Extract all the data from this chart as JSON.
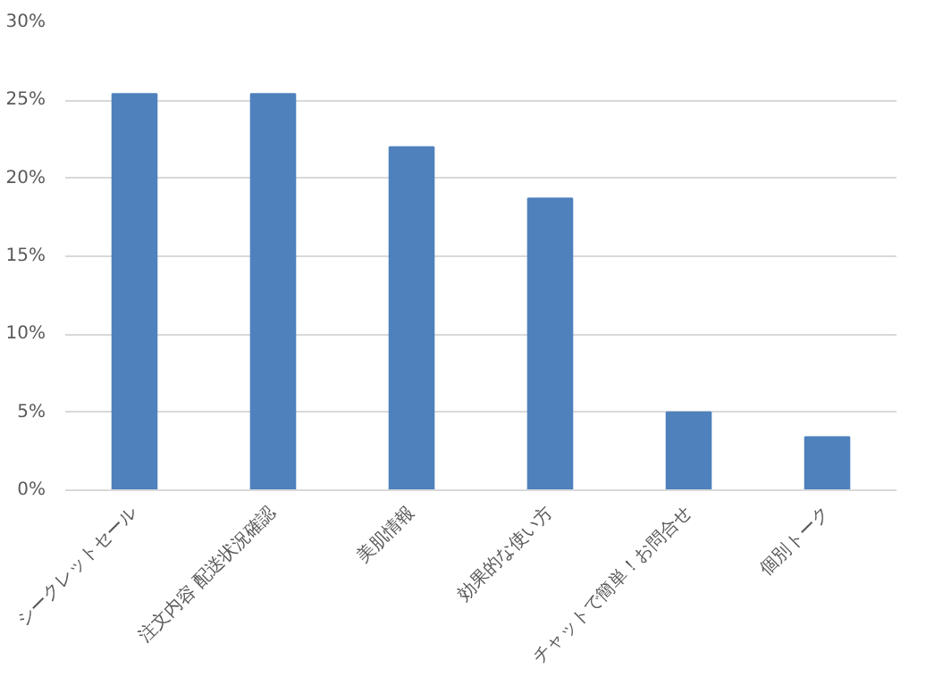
{
  "chart_data": {
    "type": "bar",
    "categories": [
      "シークレットセール",
      "注文内容 配送状況確認",
      "美肌情報",
      "効果的な使い方",
      "チャットで簡単！お問合せ",
      "個別トーク"
    ],
    "values": [
      25.4,
      25.4,
      22.0,
      18.7,
      5.0,
      3.4
    ],
    "color": "#4f81bd",
    "ylim": [
      0,
      30
    ],
    "yticks": [
      {
        "value": 0,
        "label": "0%"
      },
      {
        "value": 5,
        "label": "5%"
      },
      {
        "value": 10,
        "label": "10%"
      },
      {
        "value": 15,
        "label": "15%"
      },
      {
        "value": 20,
        "label": "20%"
      },
      {
        "value": 25,
        "label": "25%"
      },
      {
        "value": 30,
        "label": "30%"
      }
    ],
    "grid": "y"
  }
}
